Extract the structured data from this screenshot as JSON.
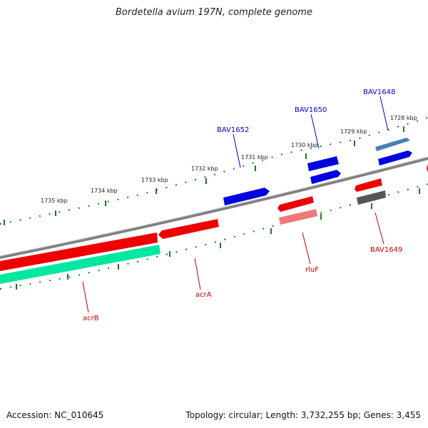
{
  "title": "Bordetella avium 197N, complete genome",
  "footer": {
    "accession": "Accession: NC_010645",
    "summary": "Topology: circular; Length: 3,732,255 bp; Genes: 3,455"
  },
  "colors": {
    "backbone": "#808080",
    "tick": "#1a7a1a",
    "forward_gene": "#0000e0",
    "forward_gene_alt": "#4682b4",
    "reverse_gene": "#ee0000",
    "reverse_gene_light": "#f07878",
    "reverse_gene_gray": "#555555",
    "rna_gene": "#00e8a0",
    "label_blue": "#0000cc",
    "label_red": "#cc0000"
  },
  "ruler": {
    "unit": "kbp",
    "labels": [
      "1728 kbp",
      "1729 kbp",
      "1730 kbp",
      "1731 kbp",
      "1732 kbp",
      "1733 kbp",
      "1734 kbp",
      "1735 kbp"
    ]
  },
  "gene_labels": [
    "BAV1648",
    "BAV1650",
    "BAV1652",
    "BAV1649",
    "rluF",
    "acrA",
    "acrB"
  ]
}
